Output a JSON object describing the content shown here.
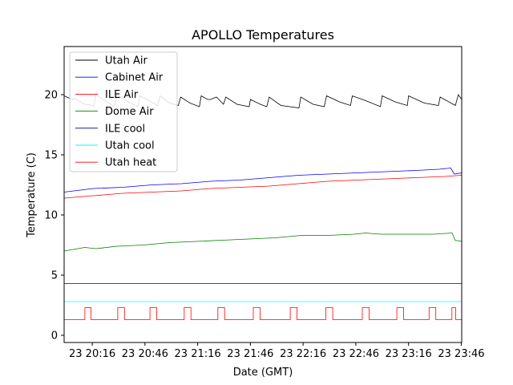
{
  "chart_data": {
    "type": "line",
    "title": "APOLLO Temperatures",
    "xlabel": "Date (GMT)",
    "ylabel": "Temperature (C)",
    "xlim": [
      0,
      13575
    ],
    "ylim": [
      -0.6,
      24
    ],
    "x_unit": "seconds after 23 20:00 GMT",
    "x_ticks": [
      {
        "value": 960,
        "label": "23 20:16"
      },
      {
        "value": 2760,
        "label": "23 20:46"
      },
      {
        "value": 4560,
        "label": "23 21:16"
      },
      {
        "value": 6360,
        "label": "23 21:46"
      },
      {
        "value": 8160,
        "label": "23 22:16"
      },
      {
        "value": 9960,
        "label": "23 22:46"
      },
      {
        "value": 11760,
        "label": "23 23:16"
      },
      {
        "value": 13560,
        "label": "23 23:46"
      }
    ],
    "y_ticks": [
      {
        "value": 0,
        "label": "0"
      },
      {
        "value": 5,
        "label": "5"
      },
      {
        "value": 10,
        "label": "10"
      },
      {
        "value": 15,
        "label": "15"
      },
      {
        "value": 20,
        "label": "20"
      }
    ],
    "legend": {
      "position": "upper-left"
    },
    "series": [
      {
        "name": "Utah Air",
        "color": "#000000",
        "x": [
          0,
          280,
          340,
          700,
          1020,
          1080,
          1400,
          1720,
          1800,
          2200,
          2520,
          2580,
          2900,
          3200,
          3280,
          3600,
          3900,
          3980,
          4300,
          4620,
          4680,
          4900,
          5000,
          5200,
          5440,
          5520,
          5900,
          6320,
          6360,
          6700,
          6920,
          7000,
          7400,
          8020,
          8080,
          8500,
          8880,
          8960,
          9400,
          9780,
          9840,
          10300,
          10800,
          10860,
          11300,
          11720,
          11760,
          12300,
          12780,
          12840,
          13360,
          13460,
          13575
        ],
        "values": [
          19.9,
          19.6,
          19.7,
          19.2,
          19.1,
          20.0,
          19.5,
          19.0,
          20.0,
          19.4,
          19.0,
          19.9,
          19.5,
          19.1,
          19.9,
          19.3,
          19.1,
          19.8,
          19.3,
          19.0,
          19.9,
          19.6,
          19.6,
          19.8,
          19.2,
          19.8,
          19.2,
          19.0,
          19.6,
          19.2,
          19.0,
          19.8,
          19.1,
          18.9,
          19.8,
          19.2,
          19.0,
          19.9,
          19.4,
          19.1,
          19.9,
          19.5,
          19.0,
          19.9,
          19.4,
          19.1,
          19.9,
          19.3,
          19.1,
          19.8,
          19.1,
          20.0,
          19.6
        ]
      },
      {
        "name": "Cabinet Air",
        "color": "#0000ff",
        "x": [
          0,
          1000,
          2000,
          3000,
          4000,
          5000,
          6000,
          7000,
          8000,
          9000,
          10000,
          11000,
          12000,
          12800,
          13200,
          13320,
          13575
        ],
        "values": [
          11.9,
          12.2,
          12.3,
          12.5,
          12.6,
          12.8,
          12.9,
          13.1,
          13.3,
          13.4,
          13.5,
          13.6,
          13.7,
          13.8,
          13.9,
          13.4,
          13.5
        ]
      },
      {
        "name": "ILE Air",
        "color": "#ff0000",
        "x": [
          0,
          1000,
          2000,
          3000,
          4000,
          5000,
          6000,
          7000,
          8000,
          9000,
          10000,
          11000,
          12000,
          13000,
          13575
        ],
        "values": [
          11.4,
          11.6,
          11.8,
          11.9,
          12.0,
          12.2,
          12.3,
          12.4,
          12.6,
          12.8,
          12.9,
          13.0,
          13.1,
          13.2,
          13.3
        ]
      },
      {
        "name": "Dome Air",
        "color": "#008000",
        "x": [
          0,
          700,
          1100,
          1800,
          2700,
          3600,
          4500,
          5400,
          6300,
          7200,
          8100,
          9000,
          9900,
          10300,
          10800,
          11700,
          12600,
          13250,
          13350,
          13575
        ],
        "values": [
          7.0,
          7.3,
          7.2,
          7.4,
          7.5,
          7.7,
          7.8,
          7.9,
          8.0,
          8.1,
          8.3,
          8.3,
          8.4,
          8.5,
          8.4,
          8.4,
          8.4,
          8.5,
          7.9,
          7.8
        ]
      },
      {
        "name": "ILE cool",
        "color": "#000080",
        "x": [
          0,
          13575
        ],
        "values": [
          4.3,
          4.3
        ]
      },
      {
        "name": "Utah cool",
        "color": "#00ffff",
        "x": [
          0,
          13575
        ],
        "values": [
          2.8,
          2.8
        ]
      },
      {
        "name": "Utah heat",
        "color": "#ff0000",
        "x": [
          0,
          710,
          710,
          920,
          920,
          1830,
          1830,
          2060,
          2060,
          2930,
          2930,
          3160,
          3160,
          4100,
          4100,
          4330,
          4330,
          5250,
          5250,
          5480,
          5480,
          6460,
          6460,
          6690,
          6690,
          7720,
          7720,
          7950,
          7950,
          8940,
          8940,
          9170,
          9170,
          10180,
          10180,
          10410,
          10410,
          11360,
          11360,
          11590,
          11590,
          12460,
          12460,
          12690,
          12690,
          13240,
          13240,
          13370,
          13370,
          13575
        ],
        "values": [
          1.3,
          1.3,
          2.3,
          2.3,
          1.3,
          1.3,
          2.3,
          2.3,
          1.3,
          1.3,
          2.3,
          2.3,
          1.3,
          1.3,
          2.3,
          2.3,
          1.3,
          1.3,
          2.3,
          2.3,
          1.3,
          1.3,
          2.3,
          2.3,
          1.3,
          1.3,
          2.3,
          2.3,
          1.3,
          1.3,
          2.3,
          2.3,
          1.3,
          1.3,
          2.3,
          2.3,
          1.3,
          1.3,
          2.3,
          2.3,
          1.3,
          1.3,
          2.3,
          2.3,
          1.3,
          1.3,
          2.3,
          2.3,
          1.3,
          1.3
        ]
      }
    ]
  }
}
